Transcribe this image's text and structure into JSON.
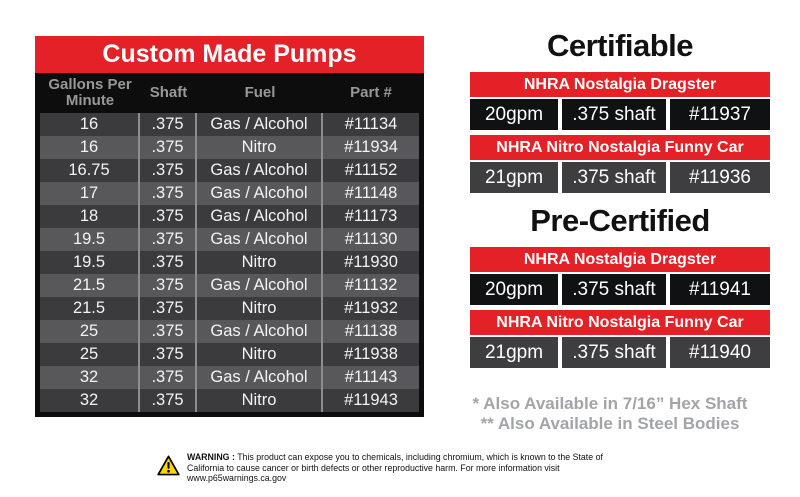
{
  "pump_table": {
    "title": "Custom Made Pumps",
    "columns": [
      "Gallons Per Minute",
      "Shaft",
      "Fuel",
      "Part #"
    ],
    "rows": [
      [
        "16",
        ".375",
        "Gas / Alcohol",
        "#11134"
      ],
      [
        "16",
        ".375",
        "Nitro",
        "#11934"
      ],
      [
        "16.75",
        ".375",
        "Gas / Alcohol",
        "#11152"
      ],
      [
        "17",
        ".375",
        "Gas / Alcohol",
        "#11148"
      ],
      [
        "18",
        ".375",
        "Gas / Alcohol",
        "#11173"
      ],
      [
        "19.5",
        ".375",
        "Gas / Alcohol",
        "#11130"
      ],
      [
        "19.5",
        ".375",
        "Nitro",
        "#11930"
      ],
      [
        "21.5",
        ".375",
        "Gas / Alcohol",
        "#11132"
      ],
      [
        "21.5",
        ".375",
        "Nitro",
        "#11932"
      ],
      [
        "25",
        ".375",
        "Gas / Alcohol",
        "#11138"
      ],
      [
        "25",
        ".375",
        "Nitro",
        "#11938"
      ],
      [
        "32",
        ".375",
        "Gas / Alcohol",
        "#11143"
      ],
      [
        "32",
        ".375",
        "Nitro",
        "#11943"
      ]
    ]
  },
  "certifiable": {
    "title": "Certifiable",
    "entries": [
      {
        "class_name": "NHRA Nostalgia Dragster",
        "gpm": "20gpm",
        "shaft": ".375 shaft",
        "part": "#11937"
      },
      {
        "class_name": "NHRA Nitro Nostalgia Funny Car",
        "gpm": "21gpm",
        "shaft": ".375 shaft",
        "part": "#11936"
      }
    ]
  },
  "pre_certified": {
    "title": "Pre-Certified",
    "entries": [
      {
        "class_name": "NHRA Nostalgia Dragster",
        "gpm": "20gpm",
        "shaft": ".375 shaft",
        "part": "#11941"
      },
      {
        "class_name": "NHRA Nitro Nostalgia Funny Car",
        "gpm": "21gpm",
        "shaft": ".375 shaft",
        "part": "#11940"
      }
    ]
  },
  "footnotes": [
    "* Also Available in 7/16” Hex Shaft",
    "** Also Available in Steel Bodies"
  ],
  "warning": {
    "label": "WARNING :",
    "text": "This product can expose you to chemicals, including chromium, which is known to the State of California to cause cancer or birth defects or other reproductive harm. For more information visit www.p65warnings.ca.gov",
    "icon": "warning-triangle-icon"
  },
  "colors": {
    "accent_red": "#e42127",
    "row_dark": "#3b3b3d",
    "row_light": "#58585a",
    "header_black": "#0d0d0e",
    "header_text_gray": "#98989a",
    "footnote_gray": "#a2a4a7",
    "warning_yellow": "#ffd400"
  }
}
